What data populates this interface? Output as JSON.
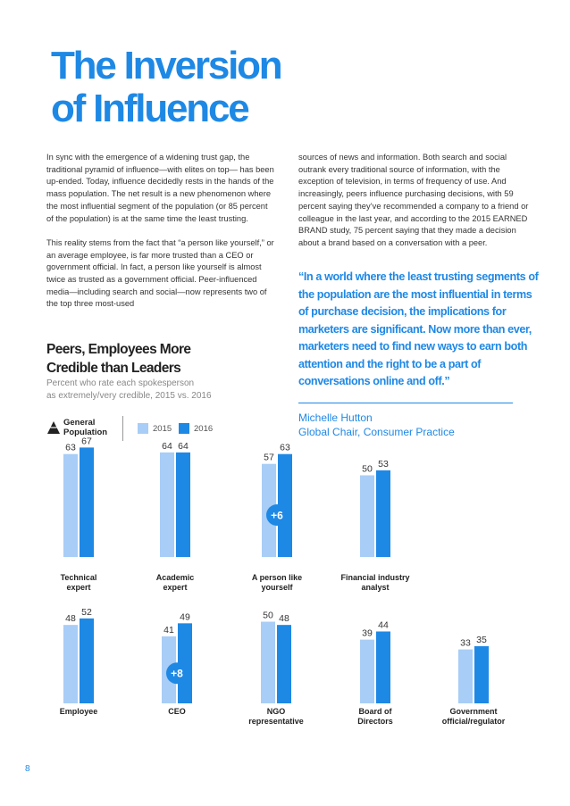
{
  "page": {
    "title_line1": "The Inversion",
    "title_line2": "of Influence",
    "left_paragraphs": [
      "In sync with the emergence of a widening trust gap, the traditional pyramid of influence—with elites on top— has been up-ended. Today, influence decidedly rests in the hands of the mass population. The net result is a new phenomenon where the most influential segment of the population (or 85 percent of the population) is at the same time the least trusting.",
      "This reality stems from the fact that “a person like yourself,” or an average employee, is far more trusted than a CEO or government official. In fact, a person like yourself is almost twice as trusted as a government official. Peer-influenced media—including search and social—now represents two of the top three most-used"
    ],
    "right_paragraph": "sources of news and information. Both search and social outrank every traditional source of information, with the exception of television, in terms of frequency of use. And increasingly, peers influence purchasing decisions, with 59 percent saying they’ve recommended a company to a friend or colleague in the last year, and according to the 2015 EARNED BRAND study, 75 percent saying that they made a decision about a brand based on a conversation with a peer.",
    "quote": "“In a world where the least trusting segments of the population are the most influential in terms of purchase decision, the implications for marketers are significant.  Now more than ever, marketers need to find new ways to earn both attention and the right to be a part of conversations online and off.”",
    "quote_name": "Michelle Hutton",
    "quote_role": "Global Chair, Consumer Practice",
    "section_title_line1": "Peers, Employees More",
    "section_title_line2": "Credible than Leaders",
    "section_desc_line1": "Percent who rate each spokesperson",
    "section_desc_line2": "as extremely/very credible, 2015 vs. 2016",
    "legend_population": "General Population",
    "page_number": "8"
  },
  "colors": {
    "accent": "#1e88e5",
    "bar_2015": "#a8cdf6",
    "bar_2016": "#1e88e5"
  },
  "chart_data": {
    "type": "bar",
    "series": [
      {
        "name": "2015",
        "color": "#a8cdf6"
      },
      {
        "name": "2016",
        "color": "#1e88e5"
      }
    ],
    "ylim": [
      0,
      70
    ],
    "rows": [
      {
        "categories": [
          {
            "label": [
              "Technical",
              "expert"
            ],
            "v2015": 63,
            "v2016": 67
          },
          {
            "label": [
              "Academic",
              "expert"
            ],
            "v2015": 64,
            "v2016": 64
          },
          {
            "label": [
              "A person like",
              "yourself"
            ],
            "v2015": 57,
            "v2016": 63,
            "badge": "+6"
          },
          {
            "label": [
              "Financial industry",
              "analyst"
            ],
            "v2015": 50,
            "v2016": 53
          }
        ]
      },
      {
        "categories": [
          {
            "label": [
              "Employee"
            ],
            "v2015": 48,
            "v2016": 52
          },
          {
            "label": [
              "CEO"
            ],
            "v2015": 41,
            "v2016": 49,
            "badge": "+8"
          },
          {
            "label": [
              "NGO",
              "representative"
            ],
            "v2015": 50,
            "v2016": 48
          },
          {
            "label": [
              "Board of",
              "Directors"
            ],
            "v2015": 39,
            "v2016": 44
          },
          {
            "label": [
              "Government",
              "official/regulator"
            ],
            "v2015": 33,
            "v2016": 35
          }
        ]
      }
    ]
  }
}
